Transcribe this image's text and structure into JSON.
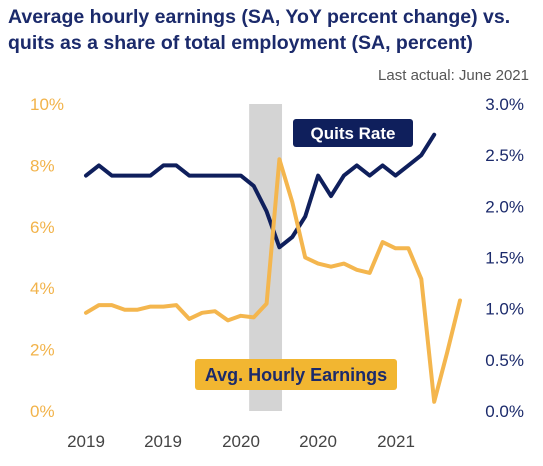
{
  "chart_data": {
    "type": "line",
    "title": "Average hourly earnings (SA, YoY percent change) vs. quits as a share of total employment (SA, percent)",
    "title_lines": [
      "Average hourly earnings (SA, YoY percent change) vs.",
      "quits as a share of total employment (SA, percent)"
    ],
    "annotation": "Last actual: June 2021",
    "x_tick_labels": [
      "2019",
      "2019",
      "2020",
      "2020",
      "2021"
    ],
    "left_axis": {
      "ylim": [
        0,
        10
      ],
      "ticks": [
        0,
        2,
        4,
        6,
        8,
        10
      ],
      "tick_labels": [
        "0%",
        "2%",
        "4%",
        "6%",
        "8%",
        "10%"
      ],
      "color": "#f4b64e"
    },
    "right_axis": {
      "ylim": [
        0,
        3.0
      ],
      "ticks": [
        0,
        0.5,
        1.0,
        1.5,
        2.0,
        2.5,
        3.0
      ],
      "tick_labels": [
        "0.0%",
        "0.5%",
        "1.0%",
        "1.5%",
        "2.0%",
        "2.5%",
        "3.0%"
      ],
      "color": "#0f1f5c"
    },
    "recession_shading": {
      "from": "2020-02",
      "to": "2020-04",
      "color": "#d4d4d4"
    },
    "x": [
      "2019-01",
      "2019-02",
      "2019-03",
      "2019-04",
      "2019-05",
      "2019-06",
      "2019-07",
      "2019-08",
      "2019-09",
      "2019-10",
      "2019-11",
      "2019-12",
      "2020-01",
      "2020-02",
      "2020-03",
      "2020-04",
      "2020-05",
      "2020-06",
      "2020-07",
      "2020-08",
      "2020-09",
      "2020-10",
      "2020-11",
      "2020-12",
      "2021-01",
      "2021-02",
      "2021-03",
      "2021-04",
      "2021-05",
      "2021-06"
    ],
    "series": [
      {
        "name": "Quits Rate",
        "axis": "right",
        "color": "#0f1f5c",
        "values": [
          2.3,
          2.4,
          2.3,
          2.3,
          2.3,
          2.3,
          2.4,
          2.4,
          2.3,
          2.3,
          2.3,
          2.3,
          2.3,
          2.2,
          1.95,
          1.6,
          1.7,
          1.9,
          2.3,
          2.1,
          2.3,
          2.4,
          2.3,
          2.4,
          2.3,
          2.4,
          2.5,
          2.7,
          null,
          null
        ]
      },
      {
        "name": "Avg. Hourly Earnings",
        "axis": "left",
        "color": "#f4b64e",
        "values": [
          3.2,
          3.45,
          3.45,
          3.3,
          3.3,
          3.4,
          3.4,
          3.45,
          3.0,
          3.2,
          3.25,
          2.95,
          3.1,
          3.05,
          3.5,
          8.2,
          6.8,
          5.0,
          4.8,
          4.7,
          4.8,
          4.6,
          4.5,
          5.5,
          5.3,
          5.3,
          4.3,
          0.3,
          1.9,
          3.6
        ]
      }
    ]
  }
}
